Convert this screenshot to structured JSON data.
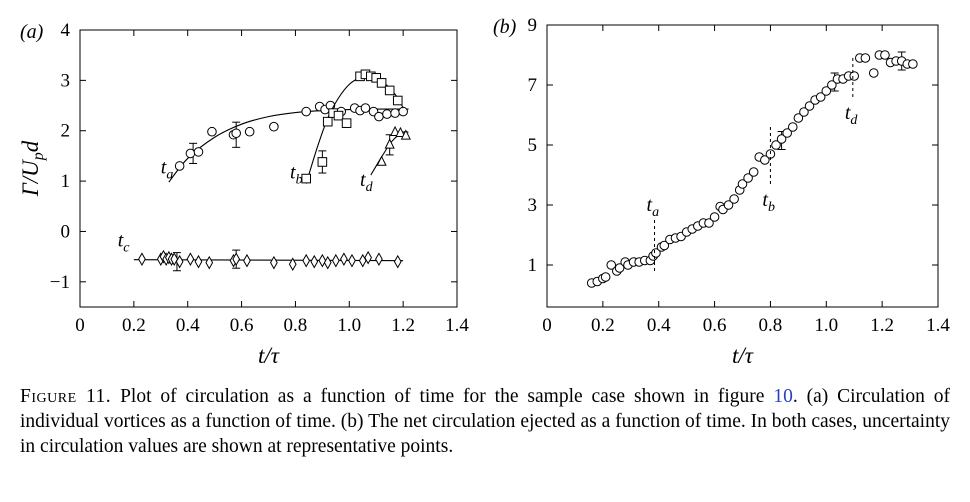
{
  "chart_data": [
    {
      "type": "scatter",
      "panel_label": "(a)",
      "xlabel": "t/τ",
      "ylabel": "Γ/U_p d",
      "xlim": [
        0,
        1.4
      ],
      "ylim": [
        -1.5,
        4
      ],
      "xticks": [
        "0",
        "0.2",
        "0.4",
        "0.6",
        "0.8",
        "1.0",
        "1.2",
        "1.4"
      ],
      "yticks": [
        "−1",
        "0",
        "1",
        "2",
        "3",
        "4"
      ],
      "series": [
        {
          "name": "t_a",
          "marker": "circle",
          "x": [
            0.37,
            0.41,
            0.44,
            0.49,
            0.57,
            0.58,
            0.63,
            0.72,
            0.84,
            0.89,
            0.91,
            0.93,
            0.97,
            1.02,
            1.04,
            1.06,
            1.09,
            1.11,
            1.14,
            1.17,
            1.2
          ],
          "y": [
            1.3,
            1.55,
            1.58,
            1.98,
            1.92,
            1.95,
            1.98,
            2.08,
            2.38,
            2.48,
            2.42,
            2.5,
            2.38,
            2.45,
            2.4,
            2.45,
            2.38,
            2.28,
            2.33,
            2.35,
            2.38
          ],
          "fit_x": [
            0.33,
            0.4,
            0.5,
            0.6,
            0.7,
            0.8,
            0.9,
            1.0,
            1.1,
            1.22
          ],
          "fit_y": [
            0.98,
            1.45,
            1.87,
            2.13,
            2.28,
            2.36,
            2.4,
            2.42,
            2.43,
            2.43
          ],
          "errorbars": [
            {
              "x": 0.42,
              "y": 1.55,
              "err": 0.2
            },
            {
              "x": 0.58,
              "y": 1.92,
              "err": 0.25
            }
          ]
        },
        {
          "name": "t_b",
          "marker": "square",
          "x": [
            0.84,
            0.9,
            0.92,
            0.94,
            0.96,
            0.99,
            1.04,
            1.06,
            1.08,
            1.1,
            1.12,
            1.15,
            1.18
          ],
          "y": [
            1.05,
            1.38,
            2.18,
            2.35,
            2.3,
            2.15,
            3.08,
            3.12,
            3.08,
            3.05,
            2.95,
            2.8,
            2.6
          ],
          "fit_x": [
            0.84,
            0.88,
            0.92,
            0.96,
            1.0,
            1.04,
            1.07,
            1.1,
            1.14,
            1.18,
            1.2
          ],
          "fit_y": [
            0.95,
            1.65,
            2.25,
            2.65,
            2.92,
            3.06,
            3.1,
            3.06,
            2.9,
            2.65,
            2.45
          ],
          "errorbars": [
            {
              "x": 0.9,
              "y": 1.38,
              "err": 0.22
            }
          ]
        },
        {
          "name": "t_d",
          "marker": "triangle",
          "x": [
            1.12,
            1.15,
            1.17,
            1.19,
            1.21
          ],
          "y": [
            1.38,
            1.72,
            1.97,
            1.95,
            1.9
          ],
          "fit_x": [
            1.08,
            1.12,
            1.16,
            1.2,
            1.22
          ],
          "fit_y": [
            1.12,
            1.48,
            1.8,
            1.97,
            1.97
          ],
          "errorbars": [
            {
              "x": 1.15,
              "y": 1.72,
              "err": 0.2
            }
          ]
        },
        {
          "name": "t_c",
          "marker": "diamond",
          "x": [
            0.23,
            0.3,
            0.31,
            0.32,
            0.33,
            0.34,
            0.35,
            0.37,
            0.41,
            0.44,
            0.48,
            0.57,
            0.58,
            0.62,
            0.72,
            0.79,
            0.84,
            0.87,
            0.9,
            0.92,
            0.95,
            0.98,
            1.01,
            1.05,
            1.07,
            1.11,
            1.18
          ],
          "y": [
            -0.55,
            -0.55,
            -0.5,
            -0.55,
            -0.52,
            -0.55,
            -0.55,
            -0.6,
            -0.55,
            -0.6,
            -0.62,
            -0.58,
            -0.55,
            -0.58,
            -0.62,
            -0.65,
            -0.58,
            -0.6,
            -0.58,
            -0.62,
            -0.58,
            -0.55,
            -0.58,
            -0.58,
            -0.52,
            -0.55,
            -0.6
          ],
          "fit_x": [
            0.2,
            1.2
          ],
          "fit_y": [
            -0.56,
            -0.58
          ],
          "errorbars": [
            {
              "x": 0.36,
              "y": -0.6,
              "err": 0.18
            },
            {
              "x": 0.58,
              "y": -0.55,
              "err": 0.18
            }
          ]
        }
      ],
      "annotations": [
        {
          "text": "t",
          "sub": "a",
          "x": 0.3,
          "y": 1.15
        },
        {
          "text": "t",
          "sub": "b",
          "x": 0.78,
          "y": 1.05
        },
        {
          "text": "t",
          "sub": "d",
          "x": 1.04,
          "y": 0.9
        },
        {
          "text": "t",
          "sub": "c",
          "x": 0.14,
          "y": -0.3
        }
      ]
    },
    {
      "type": "scatter",
      "panel_label": "(b)",
      "xlabel": "t/τ",
      "ylabel": "",
      "xlim": [
        0,
        1.4
      ],
      "ylim": [
        -0.4,
        9
      ],
      "xticks": [
        "0",
        "0.2",
        "0.4",
        "0.6",
        "0.8",
        "1.0",
        "1.2",
        "1.4"
      ],
      "yticks": [
        "1",
        "3",
        "5",
        "7",
        "9"
      ],
      "series": [
        {
          "name": "net circulation",
          "marker": "circle",
          "x": [
            0.16,
            0.18,
            0.2,
            0.21,
            0.23,
            0.25,
            0.26,
            0.28,
            0.29,
            0.31,
            0.33,
            0.35,
            0.37,
            0.38,
            0.39,
            0.41,
            0.42,
            0.44,
            0.46,
            0.48,
            0.5,
            0.52,
            0.54,
            0.56,
            0.58,
            0.6,
            0.62,
            0.63,
            0.65,
            0.67,
            0.69,
            0.7,
            0.72,
            0.74,
            0.76,
            0.78,
            0.8,
            0.82,
            0.84,
            0.86,
            0.88,
            0.9,
            0.92,
            0.94,
            0.96,
            0.98,
            1.0,
            1.02,
            1.04,
            1.06,
            1.08,
            1.1,
            1.12,
            1.14,
            1.17,
            1.19,
            1.21,
            1.23,
            1.25,
            1.27,
            1.29,
            1.31
          ],
          "y": [
            0.4,
            0.45,
            0.55,
            0.6,
            1.0,
            0.8,
            0.9,
            1.1,
            1.0,
            1.1,
            1.1,
            1.15,
            1.15,
            1.3,
            1.4,
            1.6,
            1.65,
            1.85,
            1.9,
            1.95,
            2.1,
            2.2,
            2.3,
            2.4,
            2.4,
            2.6,
            2.95,
            2.85,
            3.0,
            3.2,
            3.5,
            3.7,
            3.9,
            4.1,
            4.6,
            4.5,
            4.7,
            5.0,
            5.2,
            5.4,
            5.6,
            5.9,
            6.1,
            6.3,
            6.5,
            6.6,
            6.8,
            7.0,
            7.2,
            7.2,
            7.3,
            7.3,
            7.9,
            7.9,
            7.4,
            8.0,
            8.0,
            7.75,
            7.8,
            7.8,
            7.7,
            7.7
          ],
          "errorbars": [
            {
              "x": 0.84,
              "y": 5.15,
              "err": 0.3
            },
            {
              "x": 1.03,
              "y": 7.1,
              "err": 0.3
            },
            {
              "x": 1.27,
              "y": 7.8,
              "err": 0.3
            }
          ]
        }
      ],
      "markers": [
        {
          "label": "t",
          "sub": "a",
          "x": 0.385,
          "y_from": 0.8,
          "y_to": 2.6
        },
        {
          "label": "t",
          "sub": "b",
          "x": 0.8,
          "y_from": 3.7,
          "y_to": 5.7
        },
        {
          "label": "t",
          "sub": "d",
          "x": 1.095,
          "y_from": 6.6,
          "y_to": 8.0
        }
      ]
    }
  ],
  "caption": {
    "label": "Figure 11.",
    "text_before_ref": " Plot of circulation as a function of time for the sample case shown in figure ",
    "ref": "10",
    "text_after_ref": ". (a) Circulation of individual vortices as a function of time. (b) The net circulation ejected as a function of time. In both cases, uncertainty in circulation values are shown at representative points."
  }
}
